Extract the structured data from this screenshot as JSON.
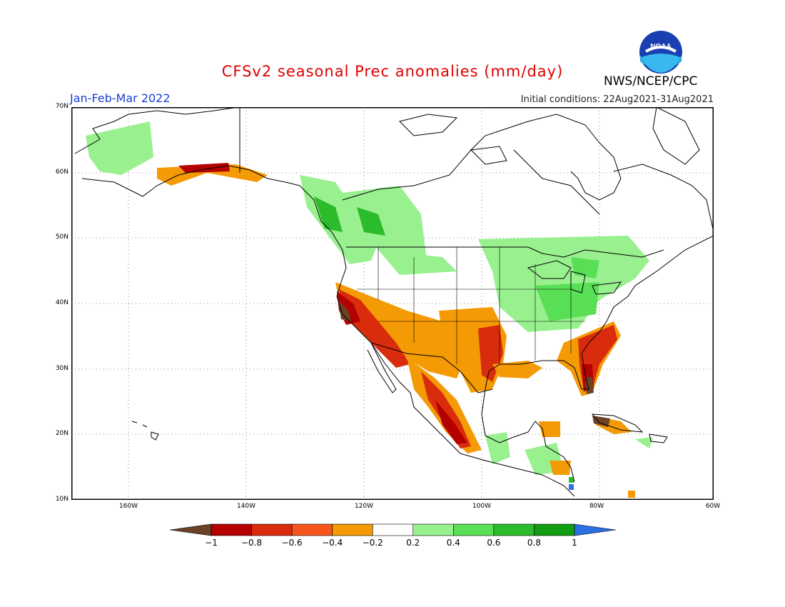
{
  "header": {
    "title": "CFSv2 seasonal Prec anomalies (mm/day)",
    "period": "Jan-Feb-Mar 2022",
    "initial_conditions": "Initial conditions: 22Aug2021-31Aug2021",
    "org": "NWS/NCEP/CPC",
    "logo_text": "NOAA"
  },
  "map": {
    "lat_labels": [
      "70N",
      "60N",
      "50N",
      "40N",
      "30N",
      "20N",
      "10N"
    ],
    "lon_labels": [
      "160W",
      "140W",
      "120W",
      "100W",
      "80W",
      "60W"
    ]
  },
  "legend": {
    "labels": [
      "−1",
      "−0.8",
      "−0.6",
      "−0.4",
      "−0.2",
      "0.2",
      "0.4",
      "0.6",
      "0.8",
      "1"
    ],
    "colors": [
      "#6b4226",
      "#b50000",
      "#d92c0c",
      "#f6561b",
      "#f49a05",
      "#ffffff",
      "#99f08f",
      "#58df55",
      "#2bbb2b",
      "#129c12",
      "#2b6fe0"
    ]
  }
}
